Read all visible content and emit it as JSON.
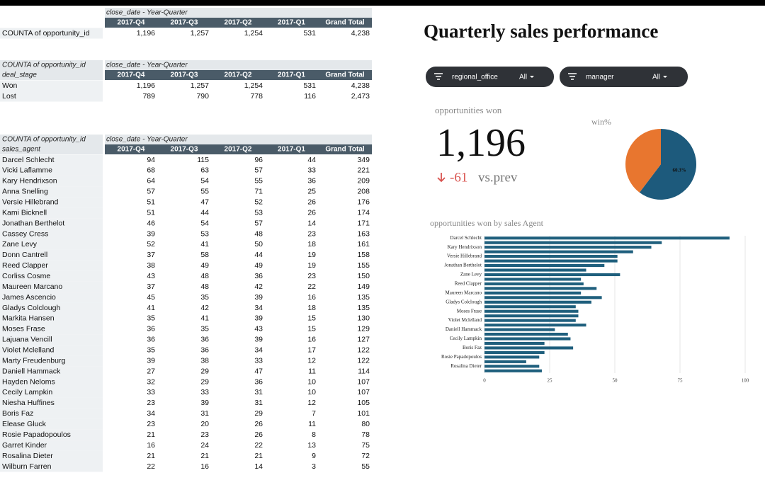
{
  "table1": {
    "column_header": "close_date - Year-Quarter",
    "columns": [
      "2017-Q4",
      "2017-Q3",
      "2017-Q2",
      "2017-Q1",
      "Grand Total"
    ],
    "rows": [
      [
        "COUNTA of opportunity_id",
        "1,196",
        "1,257",
        "1,254",
        "531",
        "4,238"
      ]
    ]
  },
  "table2": {
    "corner": [
      "COUNTA of opportunity_id",
      "deal_stage"
    ],
    "column_header": "close_date - Year-Quarter",
    "columns": [
      "2017-Q4",
      "2017-Q3",
      "2017-Q2",
      "2017-Q1",
      "Grand Total"
    ],
    "rows": [
      [
        "Won",
        "1,196",
        "1,257",
        "1,254",
        "531",
        "4,238"
      ],
      [
        "Lost",
        "789",
        "790",
        "778",
        "116",
        "2,473"
      ]
    ]
  },
  "table3": {
    "corner": [
      "COUNTA of opportunity_id",
      "sales_agent"
    ],
    "column_header": "close_date - Year-Quarter",
    "columns": [
      "2017-Q4",
      "2017-Q3",
      "2017-Q2",
      "2017-Q1",
      "Grand Total"
    ],
    "rows": [
      [
        "Darcel Schlecht",
        "94",
        "115",
        "96",
        "44",
        "349"
      ],
      [
        "Vicki Laflamme",
        "68",
        "63",
        "57",
        "33",
        "221"
      ],
      [
        "Kary Hendrixson",
        "64",
        "54",
        "55",
        "36",
        "209"
      ],
      [
        "Anna Snelling",
        "57",
        "55",
        "71",
        "25",
        "208"
      ],
      [
        "Versie Hillebrand",
        "51",
        "47",
        "52",
        "26",
        "176"
      ],
      [
        "Kami Bicknell",
        "51",
        "44",
        "53",
        "26",
        "174"
      ],
      [
        "Jonathan Berthelot",
        "46",
        "54",
        "57",
        "14",
        "171"
      ],
      [
        "Cassey Cress",
        "39",
        "53",
        "48",
        "23",
        "163"
      ],
      [
        "Zane Levy",
        "52",
        "41",
        "50",
        "18",
        "161"
      ],
      [
        "Donn Cantrell",
        "37",
        "58",
        "44",
        "19",
        "158"
      ],
      [
        "Reed Clapper",
        "38",
        "49",
        "49",
        "19",
        "155"
      ],
      [
        "Corliss Cosme",
        "43",
        "48",
        "36",
        "23",
        "150"
      ],
      [
        "Maureen Marcano",
        "37",
        "48",
        "42",
        "22",
        "149"
      ],
      [
        "James Ascencio",
        "45",
        "35",
        "39",
        "16",
        "135"
      ],
      [
        "Gladys Colclough",
        "41",
        "42",
        "34",
        "18",
        "135"
      ],
      [
        "Markita Hansen",
        "35",
        "41",
        "39",
        "15",
        "130"
      ],
      [
        "Moses Frase",
        "36",
        "35",
        "43",
        "15",
        "129"
      ],
      [
        "Lajuana Vencill",
        "36",
        "36",
        "39",
        "16",
        "127"
      ],
      [
        "Violet Mclelland",
        "35",
        "36",
        "34",
        "17",
        "122"
      ],
      [
        "Marty Freudenburg",
        "39",
        "38",
        "33",
        "12",
        "122"
      ],
      [
        "Daniell Hammack",
        "27",
        "29",
        "47",
        "11",
        "114"
      ],
      [
        "Hayden Neloms",
        "32",
        "29",
        "36",
        "10",
        "107"
      ],
      [
        "Cecily Lampkin",
        "33",
        "33",
        "31",
        "10",
        "107"
      ],
      [
        "Niesha Huffines",
        "23",
        "39",
        "31",
        "12",
        "105"
      ],
      [
        "Boris Faz",
        "34",
        "31",
        "29",
        "7",
        "101"
      ],
      [
        "Elease Gluck",
        "23",
        "20",
        "26",
        "11",
        "80"
      ],
      [
        "Rosie Papadopoulos",
        "21",
        "23",
        "26",
        "8",
        "78"
      ],
      [
        "Garret Kinder",
        "16",
        "24",
        "22",
        "13",
        "75"
      ],
      [
        "Rosalina Dieter",
        "21",
        "21",
        "21",
        "9",
        "72"
      ],
      [
        "Wilburn Farren",
        "22",
        "16",
        "14",
        "3",
        "55"
      ]
    ]
  },
  "dashboard": {
    "title": "Quarterly sales performance",
    "filters": [
      {
        "name": "regional_office",
        "value": "All"
      },
      {
        "name": "manager",
        "value": "All"
      }
    ],
    "scorecard": {
      "label": "opportunities won",
      "value": "1,196",
      "delta": "-61",
      "delta_note": "vs.prev"
    }
  },
  "chart_data": [
    {
      "type": "pie",
      "title": "win%",
      "values": [
        60.3,
        39.7
      ],
      "value_labels": [
        "60.3%",
        null
      ],
      "colors": [
        "#1d5a7c",
        "#e8762f"
      ]
    },
    {
      "type": "bar",
      "orientation": "horizontal",
      "title": "opportunities won by sales Agent",
      "categories": [
        "Darcel Schlecht",
        null,
        "Kary Hendrixson",
        null,
        "Versie Hillebrand",
        null,
        "Jonathan Berthelot",
        null,
        "Zane Levy",
        null,
        "Reed Clapper",
        null,
        "Maureen Marcano",
        null,
        "Gladys Colclough",
        null,
        "Moses Frase",
        null,
        "Violet Mclelland",
        null,
        "Daniell Hammack",
        null,
        "Cecily Lampkin",
        null,
        "Boris Faz",
        null,
        "Rosie Papadopoulos",
        null,
        "Rosalina Dieter",
        null
      ],
      "values": [
        94,
        68,
        64,
        57,
        51,
        51,
        46,
        39,
        52,
        37,
        38,
        43,
        37,
        45,
        41,
        35,
        36,
        36,
        35,
        39,
        27,
        32,
        33,
        23,
        34,
        23,
        21,
        16,
        21,
        22
      ],
      "color": "#1f5f7d",
      "xlim": [
        0,
        100
      ],
      "xticks": [
        0,
        25,
        50,
        75,
        100
      ],
      "grid": true
    }
  ]
}
